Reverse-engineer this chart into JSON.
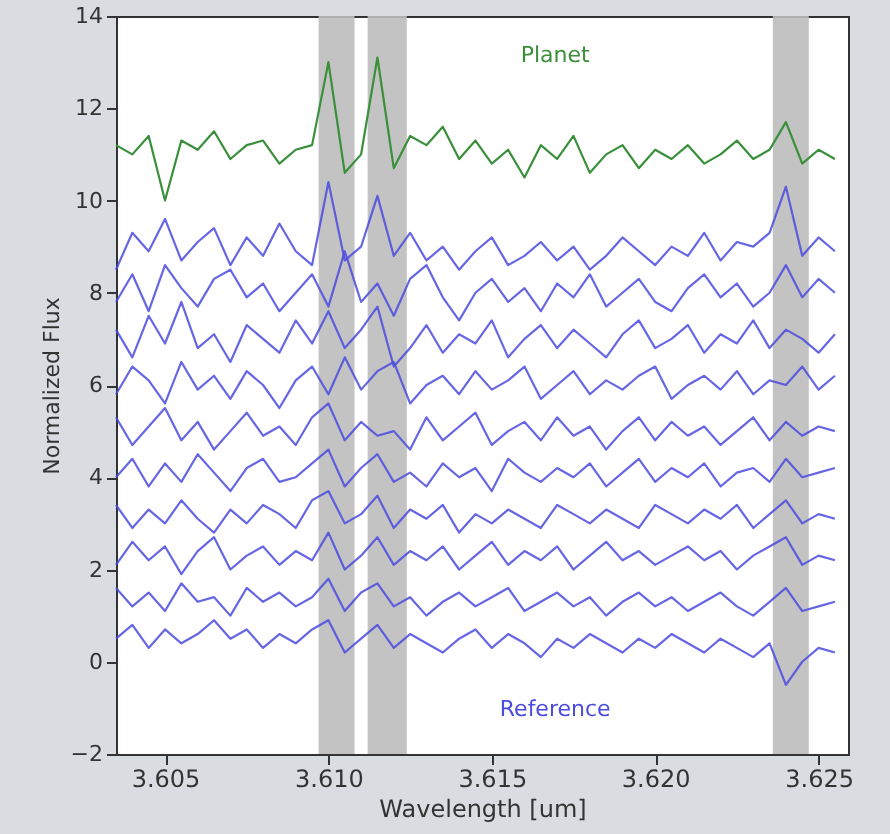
{
  "chart_data": {
    "type": "line",
    "xlabel": "Wavelength [um]",
    "ylabel": "Normalized Flux",
    "x": [
      3.6035,
      3.604,
      3.6045,
      3.605,
      3.6055,
      3.606,
      3.6065,
      3.607,
      3.6075,
      3.608,
      3.6085,
      3.609,
      3.6095,
      3.61,
      3.6105,
      3.611,
      3.6115,
      3.612,
      3.6125,
      3.613,
      3.6135,
      3.614,
      3.6145,
      3.615,
      3.6155,
      3.616,
      3.6165,
      3.617,
      3.6175,
      3.618,
      3.6185,
      3.619,
      3.6195,
      3.62,
      3.6205,
      3.621,
      3.6215,
      3.622,
      3.6225,
      3.623,
      3.6235,
      3.624,
      3.6245,
      3.625,
      3.6255
    ],
    "series": [
      {
        "color": "#4b4be0",
        "values": [
          8.5,
          9.3,
          8.9,
          9.6,
          8.7,
          9.1,
          9.4,
          8.6,
          9.2,
          8.8,
          9.5,
          8.9,
          8.6,
          10.4,
          8.7,
          9.0,
          10.1,
          8.8,
          9.3,
          8.7,
          9.0,
          8.5,
          8.9,
          9.2,
          8.6,
          8.8,
          9.1,
          8.7,
          9.0,
          8.5,
          8.8,
          9.2,
          8.9,
          8.6,
          9.0,
          8.8,
          9.3,
          8.7,
          9.1,
          9.0,
          9.3,
          10.3,
          8.8,
          9.2,
          8.9
        ]
      },
      {
        "color": "#4b4be0",
        "values": [
          7.8,
          8.4,
          7.6,
          8.6,
          8.1,
          7.7,
          8.3,
          8.5,
          7.9,
          8.2,
          7.6,
          8.0,
          8.4,
          7.7,
          8.9,
          7.8,
          8.2,
          7.5,
          8.3,
          8.6,
          7.9,
          7.4,
          8.0,
          8.3,
          7.8,
          8.1,
          7.6,
          8.2,
          7.9,
          8.4,
          7.7,
          8.0,
          8.3,
          7.8,
          7.6,
          8.1,
          8.4,
          7.9,
          8.2,
          7.7,
          8.0,
          8.6,
          7.9,
          8.3,
          8.0
        ]
      },
      {
        "color": "#4b4be0",
        "values": [
          7.2,
          6.6,
          7.5,
          6.9,
          7.8,
          6.8,
          7.1,
          6.5,
          7.3,
          7.0,
          6.7,
          7.4,
          6.9,
          7.6,
          6.8,
          7.2,
          7.7,
          6.4,
          6.8,
          7.3,
          6.7,
          7.1,
          6.9,
          7.4,
          6.6,
          7.0,
          7.3,
          6.8,
          7.2,
          6.9,
          6.6,
          7.1,
          7.4,
          6.8,
          7.0,
          7.3,
          6.7,
          7.1,
          6.9,
          7.4,
          6.8,
          7.2,
          7.0,
          6.7,
          7.1
        ]
      },
      {
        "color": "#4b4be0",
        "values": [
          5.8,
          6.4,
          6.1,
          5.6,
          6.5,
          5.9,
          6.2,
          5.7,
          6.3,
          6.0,
          5.5,
          6.1,
          6.4,
          5.8,
          6.6,
          5.9,
          6.3,
          6.5,
          5.6,
          6.0,
          6.2,
          5.8,
          6.3,
          5.9,
          6.1,
          6.4,
          5.7,
          6.0,
          6.3,
          5.8,
          6.1,
          5.9,
          6.2,
          6.4,
          5.7,
          6.0,
          6.2,
          5.9,
          6.3,
          5.8,
          6.1,
          6.0,
          6.4,
          5.9,
          6.2
        ]
      },
      {
        "color": "#4b4be0",
        "values": [
          5.3,
          4.7,
          5.1,
          5.5,
          4.8,
          5.2,
          4.6,
          5.0,
          5.4,
          4.9,
          5.1,
          4.7,
          5.3,
          5.6,
          4.8,
          5.2,
          4.9,
          5.0,
          4.6,
          5.3,
          4.8,
          5.1,
          5.4,
          4.7,
          5.0,
          5.2,
          4.8,
          5.3,
          4.9,
          5.1,
          4.6,
          5.0,
          5.3,
          4.8,
          5.2,
          4.9,
          5.1,
          4.7,
          5.0,
          5.3,
          4.8,
          5.2,
          4.9,
          5.1,
          5.0
        ]
      },
      {
        "color": "#4b4be0",
        "values": [
          4.0,
          4.4,
          3.8,
          4.3,
          3.9,
          4.5,
          4.1,
          3.7,
          4.2,
          4.4,
          3.9,
          4.0,
          4.3,
          4.6,
          3.8,
          4.2,
          4.5,
          3.9,
          4.1,
          3.8,
          4.3,
          4.0,
          4.2,
          3.7,
          4.4,
          4.1,
          3.9,
          4.2,
          4.0,
          4.3,
          3.8,
          4.1,
          4.4,
          3.9,
          4.2,
          4.0,
          4.3,
          3.8,
          4.1,
          4.2,
          3.9,
          4.4,
          4.0,
          4.1,
          4.2
        ]
      },
      {
        "color": "#4b4be0",
        "values": [
          3.4,
          2.9,
          3.3,
          3.0,
          3.5,
          3.1,
          2.8,
          3.3,
          3.0,
          3.4,
          3.2,
          2.9,
          3.5,
          3.7,
          3.0,
          3.2,
          3.6,
          2.9,
          3.3,
          3.1,
          3.4,
          2.8,
          3.2,
          3.0,
          3.3,
          3.1,
          2.9,
          3.4,
          3.2,
          3.0,
          3.3,
          3.1,
          2.9,
          3.4,
          3.2,
          3.0,
          3.3,
          3.1,
          3.4,
          2.9,
          3.2,
          3.5,
          3.0,
          3.2,
          3.1
        ]
      },
      {
        "color": "#4b4be0",
        "values": [
          2.1,
          2.6,
          2.2,
          2.5,
          1.9,
          2.4,
          2.7,
          2.0,
          2.3,
          2.5,
          2.1,
          2.4,
          2.2,
          2.8,
          2.0,
          2.3,
          2.7,
          2.1,
          2.4,
          2.2,
          2.5,
          2.0,
          2.3,
          2.6,
          2.1,
          2.4,
          2.2,
          2.5,
          2.0,
          2.3,
          2.6,
          2.2,
          2.4,
          2.1,
          2.3,
          2.5,
          2.2,
          2.4,
          2.0,
          2.3,
          2.5,
          2.7,
          2.1,
          2.3,
          2.2
        ]
      },
      {
        "color": "#4b4be0",
        "values": [
          1.6,
          1.2,
          1.5,
          1.1,
          1.7,
          1.3,
          1.4,
          1.0,
          1.6,
          1.3,
          1.5,
          1.2,
          1.4,
          1.8,
          1.1,
          1.5,
          1.7,
          1.2,
          1.4,
          1.0,
          1.3,
          1.5,
          1.2,
          1.4,
          1.6,
          1.1,
          1.3,
          1.5,
          1.2,
          1.4,
          1.0,
          1.3,
          1.5,
          1.2,
          1.4,
          1.1,
          1.3,
          1.5,
          1.2,
          1.0,
          1.3,
          1.6,
          1.1,
          1.2,
          1.3
        ]
      },
      {
        "color": "#4b4be0",
        "values": [
          0.5,
          0.8,
          0.3,
          0.7,
          0.4,
          0.6,
          0.9,
          0.5,
          0.7,
          0.3,
          0.6,
          0.4,
          0.7,
          0.9,
          0.2,
          0.5,
          0.8,
          0.3,
          0.6,
          0.4,
          0.2,
          0.5,
          0.7,
          0.3,
          0.6,
          0.4,
          0.1,
          0.5,
          0.3,
          0.6,
          0.4,
          0.2,
          0.5,
          0.3,
          0.6,
          0.4,
          0.2,
          0.5,
          0.3,
          0.1,
          0.4,
          -0.5,
          0.0,
          0.3,
          0.2
        ]
      },
      {
        "color": "#3a8f3a",
        "values": [
          11.2,
          11.0,
          11.4,
          10.0,
          11.3,
          11.1,
          11.5,
          10.9,
          11.2,
          11.3,
          10.8,
          11.1,
          11.2,
          13.0,
          10.6,
          11.0,
          13.1,
          10.7,
          11.4,
          11.2,
          11.6,
          10.9,
          11.3,
          10.8,
          11.1,
          10.5,
          11.2,
          10.9,
          11.4,
          10.6,
          11.0,
          11.2,
          10.7,
          11.1,
          10.9,
          11.2,
          10.8,
          11.0,
          11.3,
          10.9,
          11.1,
          11.7,
          10.8,
          11.1,
          10.9
        ]
      }
    ],
    "bands": [
      {
        "axis": "x",
        "from": 3.6097,
        "to": 3.6108,
        "color": "#bdbdbd"
      },
      {
        "axis": "x",
        "from": 3.6112,
        "to": 3.6124,
        "color": "#bdbdbd"
      },
      {
        "axis": "x",
        "from": 3.6236,
        "to": 3.6247,
        "color": "#bdbdbd"
      }
    ],
    "annotations": [
      "Planet",
      "Reference"
    ],
    "xlim": [
      3.6035,
      3.6259
    ],
    "xticks": [
      3.605,
      {
        "value": 3.61,
        "label": "3.610"
      },
      3.615,
      {
        "value": 3.62,
        "label": "3.620"
      },
      3.625
    ],
    "ylim": [
      -2,
      14
    ],
    "yticks": [
      -2,
      0,
      2,
      4,
      6,
      8,
      10,
      12,
      14
    ],
    "grid": false,
    "line_style": "solid",
    "marker": "none"
  }
}
